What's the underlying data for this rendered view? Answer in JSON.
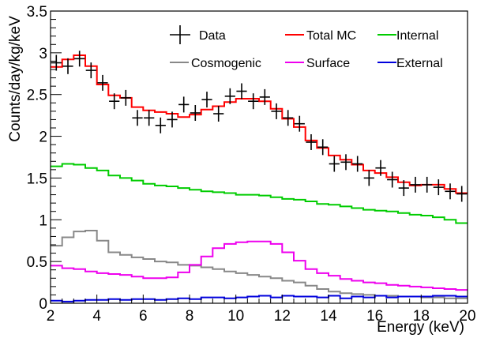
{
  "chart_data": {
    "type": "line",
    "xlabel": "Energy (keV)",
    "ylabel": "Counts/day/kg/keV",
    "xlim": [
      2,
      20
    ],
    "ylim": [
      0,
      3.5
    ],
    "x_ticks": [
      2,
      4,
      6,
      8,
      10,
      12,
      14,
      16,
      18,
      20
    ],
    "x_tick_labels": [
      "2",
      "4",
      "6",
      "8",
      "10",
      "12",
      "14",
      "16",
      "18",
      "20"
    ],
    "y_ticks": [
      0,
      0.5,
      1,
      1.5,
      2,
      2.5,
      3,
      3.5
    ],
    "y_tick_labels": [
      "0",
      "0.5",
      "1",
      "1.5",
      "2",
      "2.5",
      "3",
      "3.5"
    ],
    "grid": false,
    "legend_position": "top",
    "bin_edges": [
      2,
      2.5,
      3,
      3.5,
      4,
      4.5,
      5,
      5.5,
      6,
      6.5,
      7,
      7.5,
      8,
      8.5,
      9,
      9.5,
      10,
      10.5,
      11,
      11.5,
      12,
      12.5,
      13,
      13.5,
      14,
      14.5,
      15,
      15.5,
      16,
      16.5,
      17,
      17.5,
      18,
      18.5,
      19,
      19.5,
      20
    ],
    "data_points": {
      "name": "Data",
      "x": [
        2.25,
        2.75,
        3.25,
        3.75,
        4.25,
        4.75,
        5.25,
        5.75,
        6.25,
        6.75,
        7.25,
        7.75,
        8.25,
        8.75,
        9.25,
        9.75,
        10.25,
        10.75,
        11.25,
        11.75,
        12.25,
        12.75,
        13.25,
        13.75,
        14.25,
        14.75,
        15.25,
        15.75,
        16.25,
        16.75,
        17.25,
        17.75,
        18.25,
        18.75,
        19.25,
        19.75
      ],
      "y": [
        2.88,
        2.84,
        2.93,
        2.79,
        2.64,
        2.42,
        2.46,
        2.22,
        2.22,
        2.13,
        2.2,
        2.38,
        2.28,
        2.44,
        2.27,
        2.48,
        2.54,
        2.42,
        2.47,
        2.3,
        2.22,
        2.15,
        1.93,
        1.87,
        1.67,
        1.69,
        1.67,
        1.5,
        1.62,
        1.48,
        1.38,
        1.42,
        1.42,
        1.39,
        1.34,
        1.31
      ],
      "color": "#000000"
    },
    "series": [
      {
        "name": "Total MC",
        "color": "#ff0000",
        "values": [
          2.83,
          2.92,
          2.97,
          2.84,
          2.62,
          2.49,
          2.46,
          2.35,
          2.31,
          2.29,
          2.27,
          2.23,
          2.26,
          2.32,
          2.36,
          2.41,
          2.45,
          2.45,
          2.42,
          2.33,
          2.21,
          2.11,
          1.95,
          1.86,
          1.77,
          1.72,
          1.66,
          1.59,
          1.56,
          1.51,
          1.45,
          1.41,
          1.42,
          1.42,
          1.37,
          1.32
        ]
      },
      {
        "name": "Internal",
        "color": "#00cc00",
        "values": [
          1.64,
          1.67,
          1.66,
          1.62,
          1.59,
          1.53,
          1.5,
          1.47,
          1.43,
          1.41,
          1.4,
          1.38,
          1.36,
          1.34,
          1.33,
          1.32,
          1.3,
          1.3,
          1.29,
          1.27,
          1.25,
          1.24,
          1.22,
          1.19,
          1.18,
          1.16,
          1.14,
          1.12,
          1.11,
          1.1,
          1.08,
          1.06,
          1.05,
          1.03,
          1.0,
          0.96
        ]
      },
      {
        "name": "Cosmogenic",
        "color": "#888888",
        "values": [
          0.69,
          0.79,
          0.86,
          0.87,
          0.75,
          0.61,
          0.58,
          0.55,
          0.53,
          0.5,
          0.49,
          0.46,
          0.45,
          0.43,
          0.41,
          0.38,
          0.36,
          0.34,
          0.32,
          0.3,
          0.27,
          0.25,
          0.21,
          0.17,
          0.14,
          0.12,
          0.11,
          0.1,
          0.09,
          0.09,
          0.08,
          0.08,
          0.07,
          0.07,
          0.06,
          0.06
        ]
      },
      {
        "name": "Surface",
        "color": "#ee00ee",
        "values": [
          0.45,
          0.42,
          0.41,
          0.38,
          0.36,
          0.35,
          0.34,
          0.32,
          0.3,
          0.3,
          0.31,
          0.37,
          0.46,
          0.56,
          0.66,
          0.71,
          0.73,
          0.74,
          0.74,
          0.71,
          0.61,
          0.51,
          0.41,
          0.36,
          0.33,
          0.29,
          0.27,
          0.25,
          0.24,
          0.22,
          0.21,
          0.2,
          0.19,
          0.18,
          0.17,
          0.16
        ]
      },
      {
        "name": "External",
        "color": "#0000dd",
        "values": [
          0.03,
          0.02,
          0.03,
          0.04,
          0.04,
          0.05,
          0.04,
          0.05,
          0.05,
          0.04,
          0.05,
          0.06,
          0.05,
          0.07,
          0.07,
          0.06,
          0.07,
          0.08,
          0.09,
          0.07,
          0.09,
          0.08,
          0.08,
          0.07,
          0.09,
          0.06,
          0.08,
          0.07,
          0.09,
          0.07,
          0.08,
          0.08,
          0.08,
          0.09,
          0.09,
          0.08
        ]
      }
    ],
    "legend": [
      "Data",
      "Total MC",
      "Internal",
      "Cosmogenic",
      "Surface",
      "External"
    ]
  }
}
